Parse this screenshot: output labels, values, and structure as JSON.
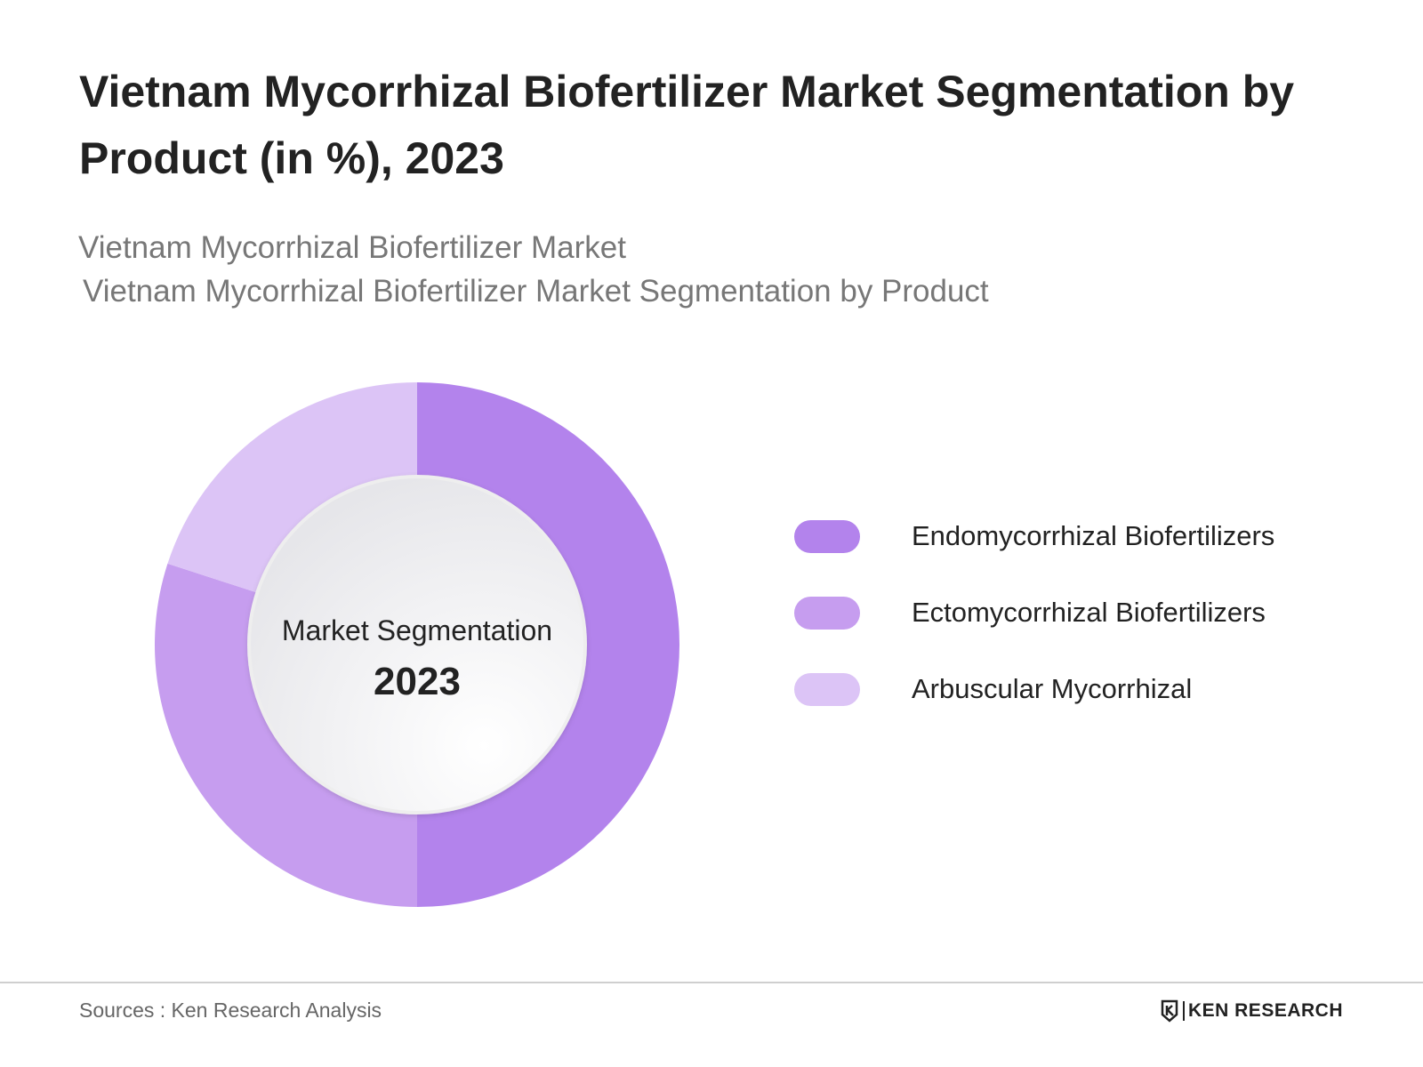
{
  "header": {
    "title": "Vietnam Mycorrhizal Biofertilizer Market Segmentation by Product (in %), 2023",
    "subtitle": "Vietnam Mycorrhizal Biofertilizer Market",
    "subtitle2": "Vietnam Mycorrhizal Biofertilizer Market Segmentation by Product"
  },
  "chart_data": {
    "type": "pie",
    "style": "donut",
    "center_label": "Market Segmentation",
    "center_year": "2023",
    "legend_position": "right",
    "series": [
      {
        "name": "Endomycorrhizal Biofertilizers",
        "value": 50,
        "color": "#B383EC"
      },
      {
        "name": "Ectomycorrhizal Biofertilizers",
        "value": 30,
        "color": "#C69DEF"
      },
      {
        "name": "Arbuscular Mycorrhizal",
        "value": 20,
        "color": "#DCC4F6"
      }
    ]
  },
  "footer": {
    "source": "Sources : Ken Research Analysis",
    "brand": "KEN RESEARCH"
  }
}
